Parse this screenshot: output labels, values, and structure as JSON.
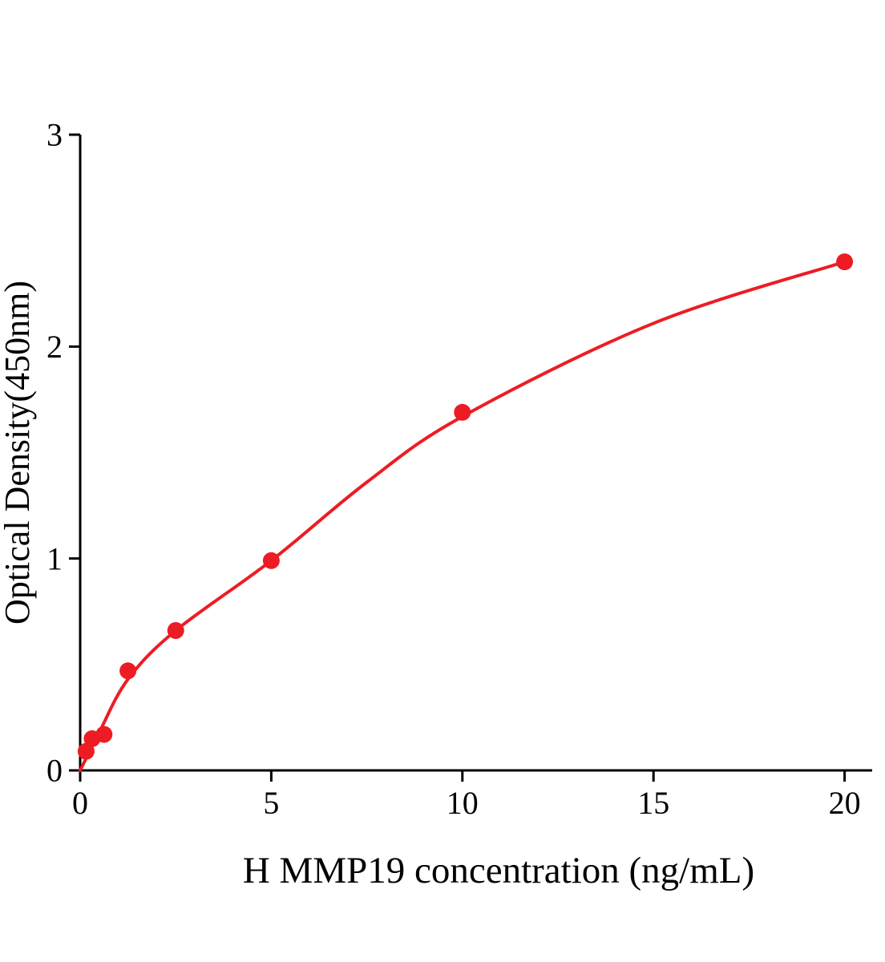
{
  "chart_data": {
    "type": "scatter",
    "title": "",
    "xlabel": "H MMP19 concentration (ng/mL)",
    "ylabel": "Optical Density(450nm)",
    "xlim": [
      0,
      20
    ],
    "ylim": [
      0,
      3
    ],
    "xticks": [
      0,
      5,
      10,
      15,
      20
    ],
    "yticks": [
      0,
      1,
      2,
      3
    ],
    "grid": false,
    "legend": null,
    "axis_color": "#000000",
    "accent_color": "#ed1c24",
    "point_radius": 10.5,
    "line_width": 4,
    "series": [
      {
        "name": "fit-curve",
        "type": "line",
        "color": "#ed1c24",
        "x": [
          0,
          0.5,
          1.25,
          2.5,
          5,
          7.5,
          10,
          15,
          20
        ],
        "y": [
          0,
          0.18,
          0.43,
          0.66,
          0.99,
          1.36,
          1.67,
          2.11,
          2.4
        ]
      },
      {
        "name": "standard-points",
        "type": "scatter",
        "color": "#ed1c24",
        "x": [
          0.156,
          0.3125,
          0.625,
          1.25,
          2.5,
          5,
          10,
          20
        ],
        "y": [
          0.09,
          0.15,
          0.17,
          0.47,
          0.66,
          0.99,
          1.69,
          2.4
        ]
      }
    ]
  }
}
